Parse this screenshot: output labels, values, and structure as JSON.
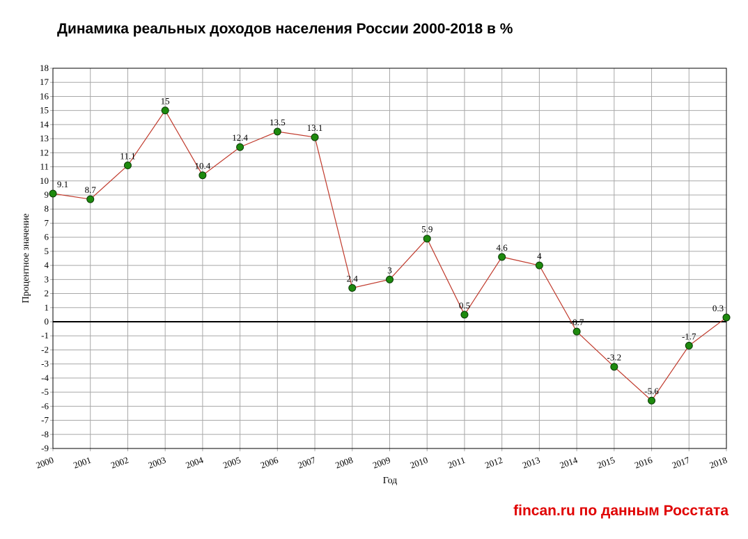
{
  "chart_data": {
    "type": "line",
    "title": "Динамика реальных доходов населения России 2000-2018 в %",
    "xlabel": "Год",
    "ylabel": "Процентное значение",
    "ylim": [
      -9,
      18
    ],
    "grid": true,
    "x": [
      "2000",
      "2001",
      "2002",
      "2003",
      "2004",
      "2005",
      "2006",
      "2007",
      "2008",
      "2009",
      "2010",
      "2011",
      "2012",
      "2013",
      "2014",
      "2015",
      "2016",
      "2017",
      "2018"
    ],
    "yticks": [
      18,
      17,
      16,
      15,
      14,
      13,
      12,
      11,
      10,
      9,
      8,
      7,
      6,
      5,
      4,
      3,
      2,
      1,
      0,
      -1,
      -2,
      -3,
      -4,
      -5,
      -6,
      -7,
      -8,
      -9
    ],
    "series": [
      {
        "values": [
          9.1,
          8.7,
          11.1,
          15,
          10.4,
          12.4,
          13.5,
          13.1,
          2.4,
          3,
          5.9,
          0.5,
          4.6,
          4,
          -0.7,
          -3.2,
          -5.6,
          -1.7,
          0.3
        ],
        "labels": [
          "9.1",
          "8.7",
          "11.1",
          "15",
          "10.4",
          "12.4",
          "13.5",
          "13.1",
          "2.4",
          "3",
          "5.9",
          "0.5",
          "4.6",
          "4",
          "-0.7",
          "-3.2",
          "-5.6",
          "-1.7",
          "0.3"
        ]
      }
    ],
    "colors": {
      "line": "#c0392b",
      "marker": "#1e8a0e",
      "marker_edge": "#0a3a05",
      "grid": "#a8a8a8",
      "zero_line": "#000000"
    }
  },
  "credit": {
    "site": "fincan.ru",
    "rest": " по данным Росстата"
  }
}
